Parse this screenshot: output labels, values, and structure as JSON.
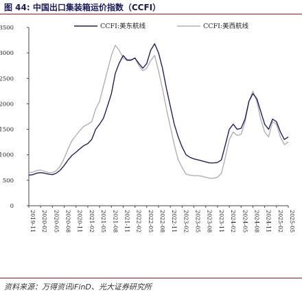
{
  "figure": {
    "title": "图 44: 中国出口集装箱运价指数（CCFI）",
    "source": "资料来源：万得资讯iFinD、光大证券研究所"
  },
  "chart_data": {
    "type": "line",
    "title": "",
    "xlabel": "",
    "ylabel": "",
    "ylim": [
      0,
      3500
    ],
    "yticks": [
      0,
      500,
      1000,
      1500,
      2000,
      2500,
      3000,
      3500
    ],
    "grid": false,
    "legend_position": "top",
    "x_tick_labels": [
      "2019-11",
      "2020-02",
      "2020-05",
      "2020-08",
      "2020-11",
      "2021-02",
      "2021-05",
      "2021-08",
      "2021-11",
      "2022-02",
      "2022-05",
      "2022-08",
      "2022-11",
      "2023-02",
      "2023-05",
      "2023-08",
      "2023-11",
      "2024-02",
      "2024-05",
      "2024-08",
      "2024-11",
      "2025-02",
      "2025-05"
    ],
    "x_dates": [
      "2019-11",
      "2019-12",
      "2020-01",
      "2020-02",
      "2020-03",
      "2020-04",
      "2020-05",
      "2020-06",
      "2020-07",
      "2020-08",
      "2020-09",
      "2020-10",
      "2020-11",
      "2020-12",
      "2021-01",
      "2021-02",
      "2021-03",
      "2021-04",
      "2021-05",
      "2021-06",
      "2021-07",
      "2021-08",
      "2021-09",
      "2021-10",
      "2021-11",
      "2021-12",
      "2022-01",
      "2022-02",
      "2022-03",
      "2022-04",
      "2022-05",
      "2022-06",
      "2022-07",
      "2022-08",
      "2022-09",
      "2022-10",
      "2022-11",
      "2022-12",
      "2023-01",
      "2023-02",
      "2023-03",
      "2023-04",
      "2023-05",
      "2023-06",
      "2023-07",
      "2023-08",
      "2023-09",
      "2023-10",
      "2023-11",
      "2023-12",
      "2024-01",
      "2024-02",
      "2024-03",
      "2024-04",
      "2024-05",
      "2024-06",
      "2024-07",
      "2024-08",
      "2024-09",
      "2024-10",
      "2024-11",
      "2024-12",
      "2025-01",
      "2025-02",
      "2025-03",
      "2025-04",
      "2025-05"
    ],
    "series": [
      {
        "name": "CCFI:美东航线",
        "color": "#1f1f5e",
        "values": [
          600,
          610,
          640,
          650,
          640,
          620,
          610,
          640,
          700,
          790,
          900,
          990,
          1050,
          1120,
          1180,
          1220,
          1300,
          1500,
          1600,
          1720,
          1950,
          2200,
          2600,
          2800,
          2950,
          2860,
          2860,
          2900,
          2790,
          2700,
          2790,
          3050,
          3180,
          3000,
          2700,
          2300,
          1950,
          1600,
          1350,
          1150,
          1000,
          950,
          920,
          900,
          880,
          860,
          840,
          840,
          850,
          900,
          1200,
          1500,
          1600,
          1500,
          1520,
          1700,
          2050,
          2200,
          2100,
          1850,
          1600,
          1500,
          1700,
          1650,
          1450,
          1300,
          1350
        ]
      },
      {
        "name": "CCFI:美西航线",
        "color": "#b0b0b0",
        "values": [
          650,
          660,
          690,
          700,
          680,
          650,
          650,
          690,
          780,
          930,
          1120,
          1280,
          1380,
          1480,
          1560,
          1600,
          1650,
          1900,
          2050,
          2350,
          2650,
          2950,
          3150,
          3050,
          2900,
          2850,
          2850,
          2900,
          2750,
          2650,
          2700,
          2850,
          2950,
          2650,
          2300,
          1900,
          1550,
          1200,
          900,
          750,
          620,
          600,
          590,
          590,
          580,
          560,
          540,
          540,
          560,
          640,
          950,
          1300,
          1450,
          1380,
          1400,
          1650,
          2050,
          2250,
          2050,
          1700,
          1450,
          1350,
          1650,
          1600,
          1350,
          1200,
          1250
        ]
      }
    ]
  }
}
